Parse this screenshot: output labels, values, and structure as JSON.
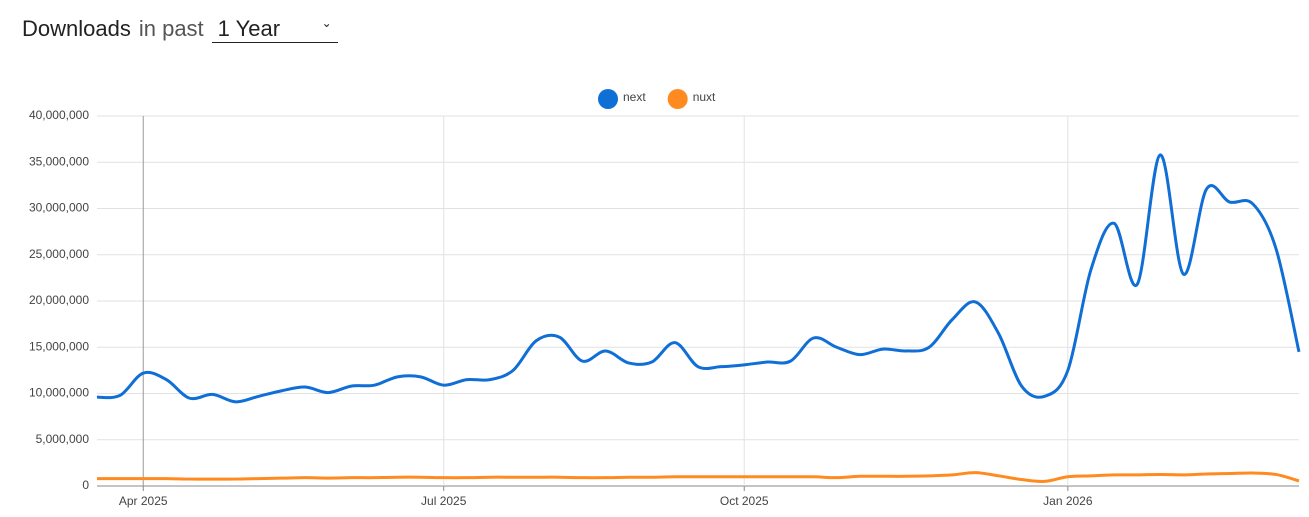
{
  "header": {
    "title": "Downloads",
    "connector": "in past",
    "period": "1 Year"
  },
  "chart_data": {
    "type": "line",
    "categories": [
      null,
      null,
      "Apr 2025",
      null,
      null,
      null,
      null,
      null,
      null,
      null,
      null,
      null,
      null,
      null,
      null,
      "Jul 2025",
      null,
      null,
      null,
      null,
      null,
      null,
      null,
      null,
      null,
      null,
      null,
      null,
      "Oct 2025",
      null,
      null,
      null,
      null,
      null,
      null,
      null,
      null,
      null,
      null,
      null,
      null,
      null,
      "Jan 2026",
      null,
      null,
      null,
      null,
      null,
      null,
      null,
      null,
      null,
      null
    ],
    "series": [
      {
        "name": "next",
        "color": "#0f6fd6",
        "values": [
          9600000,
          9800000,
          12200000,
          11500000,
          9500000,
          9900000,
          9100000,
          9700000,
          10300000,
          10700000,
          10100000,
          10800000,
          10900000,
          11800000,
          11800000,
          10900000,
          11500000,
          11500000,
          12500000,
          15700000,
          16100000,
          13500000,
          14600000,
          13300000,
          13400000,
          15500000,
          12900000,
          12900000,
          13100000,
          13400000,
          13500000,
          16000000,
          15000000,
          14200000,
          14800000,
          14600000,
          15000000,
          18000000,
          19900000,
          16500000,
          10800000,
          9700000,
          12500000,
          23400000,
          28400000,
          21800000,
          35800000,
          22900000,
          32100000,
          30700000,
          30500000,
          25700000,
          14500000
        ]
      },
      {
        "name": "nuxt",
        "color": "#ff8a1f",
        "values": [
          800000,
          800000,
          800000,
          800000,
          750000,
          750000,
          750000,
          800000,
          850000,
          900000,
          850000,
          900000,
          900000,
          950000,
          950000,
          900000,
          900000,
          950000,
          950000,
          950000,
          950000,
          900000,
          900000,
          950000,
          950000,
          1000000,
          1000000,
          1000000,
          1000000,
          1000000,
          1000000,
          1000000,
          900000,
          1050000,
          1050000,
          1050000,
          1100000,
          1200000,
          1450000,
          1100000,
          700000,
          500000,
          1000000,
          1100000,
          1200000,
          1200000,
          1250000,
          1200000,
          1300000,
          1350000,
          1400000,
          1250000,
          550000
        ]
      }
    ],
    "ylim": [
      0,
      40000000
    ],
    "yticks": [
      {
        "value": 0,
        "label": "0"
      },
      {
        "value": 5000000,
        "label": "5,000,000"
      },
      {
        "value": 10000000,
        "label": "10,000,000"
      },
      {
        "value": 15000000,
        "label": "15,000,000"
      },
      {
        "value": 20000000,
        "label": "20,000,000"
      },
      {
        "value": 25000000,
        "label": "25,000,000"
      },
      {
        "value": 30000000,
        "label": "30,000,000"
      },
      {
        "value": 35000000,
        "label": "35,000,000"
      },
      {
        "value": 40000000,
        "label": "40,000,000"
      }
    ],
    "grid": true,
    "legend": "top"
  }
}
